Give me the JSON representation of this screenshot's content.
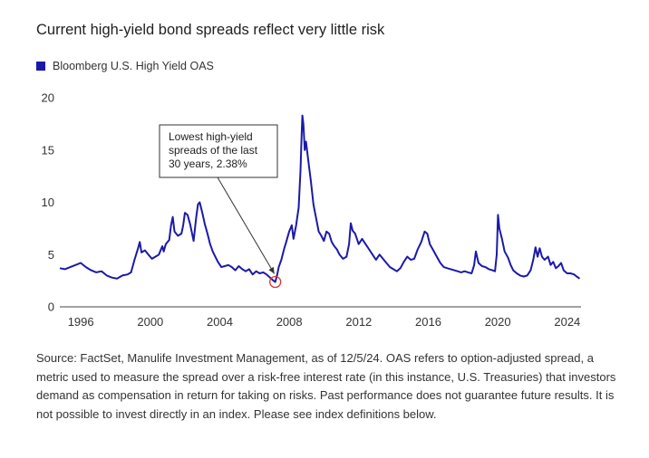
{
  "title": "Current high-yield bond spreads reflect very little risk",
  "source": "Source: FactSet, Manulife Investment Management, as of 12/5/24. OAS refers to option-adjusted spread, a metric used to measure the spread over a risk-free interest rate (in this instance, U.S. Treasuries) that investors demand as compensation in return for taking on risks. Past performance does not guarantee future results. It is not possible to invest directly in an index. Please see index definitions below.",
  "colors": {
    "series": "#1a1aaa",
    "axis": "#444444",
    "annotation_circle": "#e0342a"
  },
  "chart_data": {
    "type": "line",
    "title": "",
    "xlabel": "",
    "ylabel": "",
    "xlim": [
      1995.0,
      2025.0
    ],
    "ylim": [
      0,
      20
    ],
    "x_ticks": [
      "1996",
      "2000",
      "2004",
      "2008",
      "2012",
      "2016",
      "2020",
      "2024"
    ],
    "y_ticks": [
      "0",
      "5",
      "10",
      "15",
      "20"
    ],
    "grid": false,
    "legend_position": "top-left",
    "annotation": {
      "lines": [
        "Lowest high-yield",
        "spreads of the last",
        "30 years, 2.38%"
      ],
      "x": 2007.4,
      "y": 2.38
    },
    "series": [
      {
        "name": "Bloomberg U.S. High Yield OAS",
        "points": [
          [
            1995.0,
            3.7
          ],
          [
            1995.3,
            3.6
          ],
          [
            1995.6,
            3.8
          ],
          [
            1995.9,
            4.0
          ],
          [
            1996.2,
            4.2
          ],
          [
            1996.5,
            3.8
          ],
          [
            1996.8,
            3.5
          ],
          [
            1997.1,
            3.3
          ],
          [
            1997.4,
            3.4
          ],
          [
            1997.7,
            3.0
          ],
          [
            1998.0,
            2.8
          ],
          [
            1998.3,
            2.7
          ],
          [
            1998.6,
            3.0
          ],
          [
            1998.9,
            3.1
          ],
          [
            1999.1,
            3.3
          ],
          [
            1999.3,
            4.5
          ],
          [
            1999.5,
            5.6
          ],
          [
            1999.6,
            6.2
          ],
          [
            1999.7,
            5.2
          ],
          [
            1999.9,
            5.4
          ],
          [
            2000.1,
            5.0
          ],
          [
            2000.3,
            4.6
          ],
          [
            2000.5,
            4.8
          ],
          [
            2000.7,
            5.0
          ],
          [
            2000.85,
            5.6
          ],
          [
            2000.9,
            5.8
          ],
          [
            2000.98,
            5.3
          ],
          [
            2001.1,
            6.0
          ],
          [
            2001.3,
            6.4
          ],
          [
            2001.4,
            7.8
          ],
          [
            2001.5,
            8.6
          ],
          [
            2001.6,
            7.2
          ],
          [
            2001.8,
            6.8
          ],
          [
            2002.0,
            7.0
          ],
          [
            2002.1,
            7.8
          ],
          [
            2002.2,
            9.0
          ],
          [
            2002.35,
            8.8
          ],
          [
            2002.5,
            7.9
          ],
          [
            2002.7,
            6.3
          ],
          [
            2002.85,
            8.6
          ],
          [
            2002.95,
            9.8
          ],
          [
            2003.05,
            10.0
          ],
          [
            2003.2,
            9.0
          ],
          [
            2003.35,
            7.9
          ],
          [
            2003.5,
            7.0
          ],
          [
            2003.65,
            6.0
          ],
          [
            2003.8,
            5.3
          ],
          [
            2003.95,
            4.8
          ],
          [
            2004.1,
            4.3
          ],
          [
            2004.3,
            3.8
          ],
          [
            2004.5,
            3.9
          ],
          [
            2004.7,
            4.0
          ],
          [
            2004.9,
            3.8
          ],
          [
            2005.1,
            3.5
          ],
          [
            2005.3,
            3.9
          ],
          [
            2005.5,
            3.6
          ],
          [
            2005.7,
            3.4
          ],
          [
            2005.9,
            3.6
          ],
          [
            2006.1,
            3.1
          ],
          [
            2006.3,
            3.4
          ],
          [
            2006.5,
            3.2
          ],
          [
            2006.7,
            3.3
          ],
          [
            2006.9,
            3.1
          ],
          [
            2007.1,
            2.8
          ],
          [
            2007.3,
            2.5
          ],
          [
            2007.4,
            2.38
          ],
          [
            2007.5,
            3.0
          ],
          [
            2007.6,
            3.8
          ],
          [
            2007.75,
            4.5
          ],
          [
            2007.9,
            5.5
          ],
          [
            2008.05,
            6.3
          ],
          [
            2008.2,
            7.2
          ],
          [
            2008.35,
            7.8
          ],
          [
            2008.45,
            6.5
          ],
          [
            2008.6,
            7.8
          ],
          [
            2008.75,
            9.5
          ],
          [
            2008.85,
            13.0
          ],
          [
            2008.92,
            16.5
          ],
          [
            2008.96,
            18.3
          ],
          [
            2009.02,
            17.5
          ],
          [
            2009.1,
            15.0
          ],
          [
            2009.17,
            15.8
          ],
          [
            2009.3,
            14.0
          ],
          [
            2009.45,
            12.0
          ],
          [
            2009.6,
            9.8
          ],
          [
            2009.75,
            8.5
          ],
          [
            2009.9,
            7.2
          ],
          [
            2010.05,
            6.8
          ],
          [
            2010.2,
            6.3
          ],
          [
            2010.35,
            7.2
          ],
          [
            2010.5,
            7.0
          ],
          [
            2010.65,
            6.2
          ],
          [
            2010.8,
            5.8
          ],
          [
            2010.95,
            5.5
          ],
          [
            2011.1,
            5.0
          ],
          [
            2011.3,
            4.6
          ],
          [
            2011.5,
            4.8
          ],
          [
            2011.65,
            6.0
          ],
          [
            2011.75,
            8.0
          ],
          [
            2011.85,
            7.3
          ],
          [
            2012.0,
            7.0
          ],
          [
            2012.2,
            6.0
          ],
          [
            2012.4,
            6.5
          ],
          [
            2012.6,
            6.0
          ],
          [
            2012.8,
            5.5
          ],
          [
            2013.0,
            5.0
          ],
          [
            2013.2,
            4.5
          ],
          [
            2013.4,
            5.0
          ],
          [
            2013.6,
            4.6
          ],
          [
            2013.8,
            4.2
          ],
          [
            2014.0,
            3.8
          ],
          [
            2014.2,
            3.6
          ],
          [
            2014.4,
            3.4
          ],
          [
            2014.6,
            3.7
          ],
          [
            2014.8,
            4.3
          ],
          [
            2015.0,
            4.8
          ],
          [
            2015.2,
            4.5
          ],
          [
            2015.4,
            4.6
          ],
          [
            2015.6,
            5.5
          ],
          [
            2015.8,
            6.2
          ],
          [
            2016.0,
            7.2
          ],
          [
            2016.15,
            7.0
          ],
          [
            2016.3,
            6.0
          ],
          [
            2016.5,
            5.4
          ],
          [
            2016.7,
            4.8
          ],
          [
            2016.9,
            4.2
          ],
          [
            2017.1,
            3.8
          ],
          [
            2017.3,
            3.7
          ],
          [
            2017.5,
            3.6
          ],
          [
            2017.7,
            3.5
          ],
          [
            2017.9,
            3.4
          ],
          [
            2018.1,
            3.3
          ],
          [
            2018.3,
            3.4
          ],
          [
            2018.5,
            3.3
          ],
          [
            2018.7,
            3.2
          ],
          [
            2018.85,
            4.0
          ],
          [
            2018.95,
            5.3
          ],
          [
            2019.1,
            4.2
          ],
          [
            2019.3,
            3.9
          ],
          [
            2019.5,
            3.8
          ],
          [
            2019.7,
            3.6
          ],
          [
            2019.9,
            3.5
          ],
          [
            2020.05,
            3.4
          ],
          [
            2020.15,
            5.0
          ],
          [
            2020.22,
            8.8
          ],
          [
            2020.3,
            7.5
          ],
          [
            2020.45,
            6.5
          ],
          [
            2020.6,
            5.3
          ],
          [
            2020.8,
            4.7
          ],
          [
            2020.95,
            4.0
          ],
          [
            2021.1,
            3.5
          ],
          [
            2021.3,
            3.2
          ],
          [
            2021.5,
            3.0
          ],
          [
            2021.7,
            2.9
          ],
          [
            2021.9,
            3.0
          ],
          [
            2022.1,
            3.5
          ],
          [
            2022.25,
            4.5
          ],
          [
            2022.38,
            5.7
          ],
          [
            2022.5,
            4.8
          ],
          [
            2022.62,
            5.6
          ],
          [
            2022.75,
            4.8
          ],
          [
            2022.9,
            4.5
          ],
          [
            2023.1,
            4.8
          ],
          [
            2023.25,
            4.0
          ],
          [
            2023.4,
            4.3
          ],
          [
            2023.55,
            3.7
          ],
          [
            2023.7,
            3.9
          ],
          [
            2023.85,
            4.2
          ],
          [
            2024.0,
            3.5
          ],
          [
            2024.2,
            3.2
          ],
          [
            2024.4,
            3.2
          ],
          [
            2024.6,
            3.1
          ],
          [
            2024.75,
            2.9
          ],
          [
            2024.92,
            2.7
          ]
        ]
      }
    ]
  }
}
